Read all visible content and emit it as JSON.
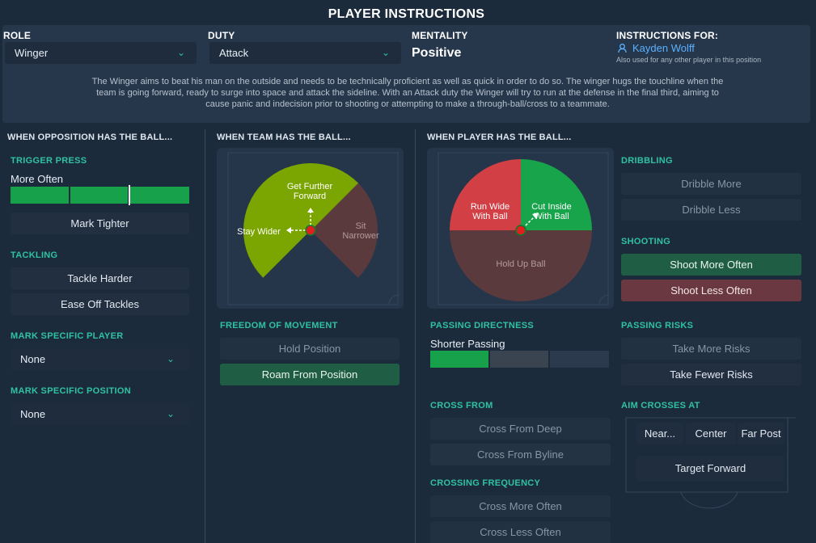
{
  "title": "PLAYER INSTRUCTIONS",
  "role": {
    "label": "ROLE",
    "value": "Winger"
  },
  "duty": {
    "label": "DUTY",
    "value": "Attack"
  },
  "mentality": {
    "label": "MENTALITY",
    "value": "Positive"
  },
  "instructions_for": {
    "label": "INSTRUCTIONS FOR:",
    "player": "Kayden Wolff",
    "note": "Also used for any other player in this position"
  },
  "description_lines": [
    "The Winger aims to beat his man on the outside and needs to be technically proficient as well as quick in order to do so. The winger hugs the touchline when the",
    "team is going forward, ready to surge into space and attack the sideline. With an Attack duty the Winger will try to run at the defense in the final third, aiming to",
    "cause panic and indecision prior to shooting or attempting to make a through-ball/cross to a teammate."
  ],
  "columns": {
    "opposition": "WHEN OPPOSITION HAS THE BALL...",
    "team": "WHEN TEAM HAS THE BALL...",
    "player": "WHEN PLAYER HAS THE BALL..."
  },
  "trigger_press": {
    "label": "TRIGGER PRESS",
    "value": "More Often",
    "level_segments": 3
  },
  "mark_tighter": "Mark Tighter",
  "tackling": {
    "label": "TACKLING",
    "options": [
      "Tackle Harder",
      "Ease Off Tackles"
    ]
  },
  "mark_player": {
    "label": "MARK SPECIFIC PLAYER",
    "value": "None"
  },
  "mark_position": {
    "label": "MARK SPECIFIC POSITION",
    "value": "None"
  },
  "team_pitch": {
    "get_further_forward": [
      "Get Further",
      "Forward"
    ],
    "stay_wider": "Stay Wider",
    "sit_narrower": [
      "Sit",
      "Narrower"
    ]
  },
  "freedom": {
    "label": "FREEDOM OF MOVEMENT",
    "options": [
      "Hold Position",
      "Roam From Position"
    ],
    "selected": "Roam From Position"
  },
  "player_pitch": {
    "run_wide": [
      "Run Wide",
      "With Ball"
    ],
    "cut_inside": [
      "Cut Inside",
      "With Ball"
    ],
    "hold_up": "Hold Up Ball"
  },
  "dribbling": {
    "label": "DRIBBLING",
    "options": [
      "Dribble More",
      "Dribble Less"
    ]
  },
  "shooting": {
    "label": "SHOOTING",
    "options": [
      "Shoot More Often",
      "Shoot Less Often"
    ]
  },
  "passing_directness": {
    "label": "PASSING DIRECTNESS",
    "value": "Shorter Passing",
    "level_segments": 1
  },
  "passing_risks": {
    "label": "PASSING RISKS",
    "options": [
      "Take More Risks",
      "Take Fewer Risks"
    ]
  },
  "cross_from": {
    "label": "CROSS FROM",
    "options": [
      "Cross From Deep",
      "Cross From Byline"
    ]
  },
  "aim_crosses": {
    "label": "AIM CROSSES AT",
    "near": "Near...",
    "center": "Center",
    "far": "Far Post",
    "target": "Target Forward"
  },
  "crossing_frequency": {
    "label": "CROSSING FREQUENCY",
    "options": [
      "Cross More Often",
      "Cross Less Often"
    ]
  },
  "colors": {
    "accent": "#2fc2a2",
    "selected_green": "#1f5e45",
    "selected_red": "#6a3840",
    "bar_green": "#17a14b",
    "wedge_lime": "#7ba500",
    "wedge_brown": "#5a3a3c",
    "wedge_red": "#d23f44",
    "wedge_green": "#18a44b",
    "link_blue": "#5ab0ff"
  }
}
